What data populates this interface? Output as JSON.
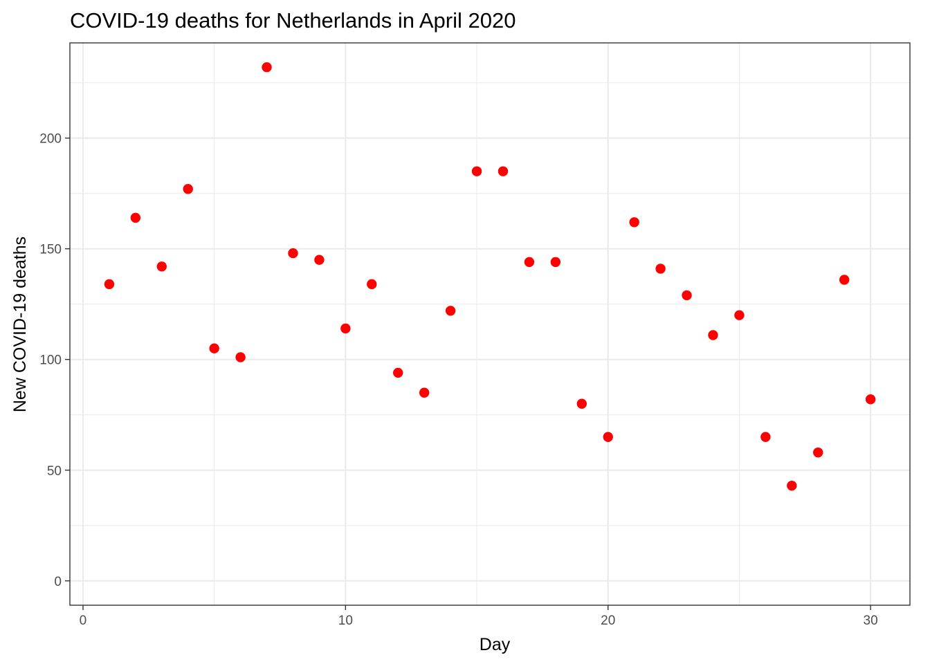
{
  "chart_data": {
    "type": "scatter",
    "title": "COVID-19 deaths for Netherlands in April 2020",
    "xlabel": "Day",
    "ylabel": "New COVID-19 deaths",
    "xlim": [
      -0.5,
      31.5
    ],
    "ylim": [
      -11,
      243
    ],
    "x_major_ticks": [
      0,
      10,
      20,
      30
    ],
    "x_minor_ticks": [
      5,
      15,
      25
    ],
    "y_major_ticks": [
      0,
      50,
      100,
      150,
      200
    ],
    "y_minor_ticks": [
      25,
      75,
      125,
      175,
      225
    ],
    "grid": true,
    "legend": "none",
    "point_color": "#ff0000",
    "x": [
      1,
      2,
      3,
      4,
      5,
      6,
      7,
      8,
      9,
      10,
      11,
      12,
      13,
      14,
      15,
      16,
      17,
      18,
      19,
      20,
      21,
      22,
      23,
      24,
      25,
      26,
      27,
      28,
      29,
      30
    ],
    "y": [
      134,
      164,
      142,
      177,
      105,
      101,
      232,
      148,
      145,
      114,
      134,
      94,
      85,
      122,
      185,
      185,
      144,
      144,
      80,
      65,
      162,
      141,
      129,
      111,
      120,
      65,
      43,
      58,
      136,
      82
    ]
  }
}
